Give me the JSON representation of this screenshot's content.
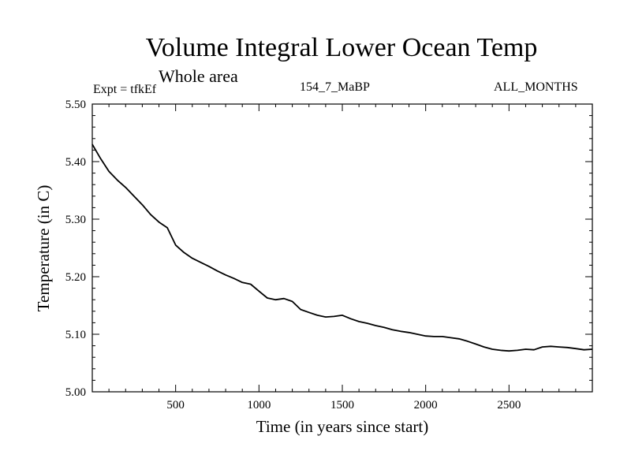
{
  "header": {
    "title": "Volume Integral Lower Ocean Temp",
    "subtitle": "Whole area",
    "expt": "Expt = tfkEf",
    "period": "154_7_MaBP",
    "months": "ALL_MONTHS"
  },
  "chart_data": {
    "type": "line",
    "title": "Volume Integral Lower Ocean Temp",
    "subtitle": "Whole area",
    "xlabel": "Time (in years since start)",
    "ylabel": "Temperature (in C)",
    "xlim": [
      0,
      3000
    ],
    "ylim": [
      5.0,
      5.5
    ],
    "xticks": [
      500,
      1000,
      1500,
      2000,
      2500
    ],
    "xtick_labels": [
      "500",
      "1000",
      "1500",
      "2000",
      "2500"
    ],
    "yticks": [
      5.0,
      5.1,
      5.2,
      5.3,
      5.4,
      5.5
    ],
    "ytick_labels": [
      "5.00",
      "5.10",
      "5.20",
      "5.30",
      "5.40",
      "5.50"
    ],
    "grid": false,
    "series": [
      {
        "color": "#000000",
        "x": [
          0,
          50,
          100,
          150,
          200,
          250,
          300,
          350,
          400,
          450,
          500,
          550,
          600,
          650,
          700,
          750,
          800,
          850,
          900,
          950,
          1000,
          1050,
          1100,
          1150,
          1200,
          1250,
          1300,
          1350,
          1400,
          1450,
          1500,
          1550,
          1600,
          1650,
          1700,
          1750,
          1800,
          1850,
          1900,
          1950,
          2000,
          2050,
          2100,
          2150,
          2200,
          2250,
          2300,
          2350,
          2400,
          2450,
          2500,
          2550,
          2600,
          2650,
          2700,
          2750,
          2800,
          2850,
          2900,
          2950,
          3000
        ],
        "y": [
          5.43,
          5.405,
          5.383,
          5.368,
          5.355,
          5.34,
          5.325,
          5.308,
          5.295,
          5.285,
          5.255,
          5.242,
          5.232,
          5.225,
          5.218,
          5.21,
          5.203,
          5.197,
          5.19,
          5.187,
          5.175,
          5.163,
          5.16,
          5.162,
          5.157,
          5.143,
          5.138,
          5.133,
          5.13,
          5.131,
          5.133,
          5.127,
          5.122,
          5.119,
          5.115,
          5.112,
          5.108,
          5.105,
          5.103,
          5.1,
          5.097,
          5.096,
          5.096,
          5.094,
          5.092,
          5.088,
          5.083,
          5.078,
          5.074,
          5.072,
          5.071,
          5.072,
          5.074,
          5.073,
          5.078,
          5.079,
          5.078,
          5.077,
          5.075,
          5.073,
          5.074
        ]
      }
    ]
  }
}
